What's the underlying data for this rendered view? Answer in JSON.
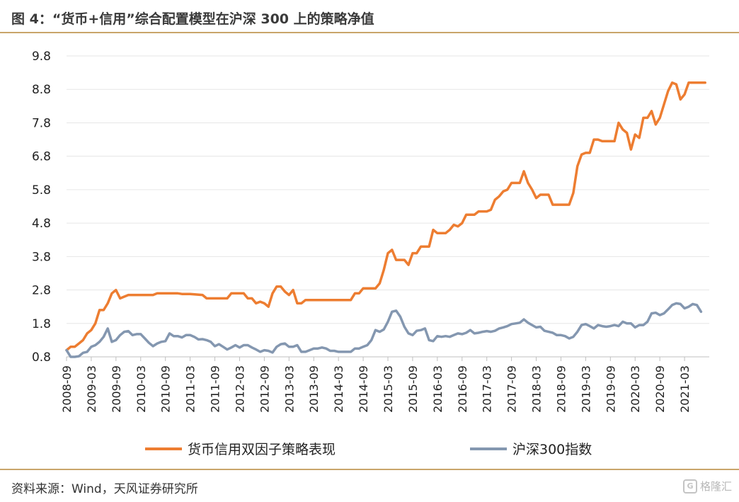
{
  "header": {
    "title": "图 4：“货币+信用”综合配置模型在沪深 300 上的策略净值"
  },
  "footer": {
    "source": "资料来源：Wind，天风证券研究所",
    "watermark": "格隆汇",
    "watermark_logo": "G"
  },
  "colors": {
    "accent_rule": "#c9a56a",
    "strategy": "#ed7d31",
    "index": "#8497b0",
    "grid": "#e6e6e6"
  },
  "chart_data": {
    "type": "line",
    "title": "",
    "xlabel": "",
    "ylabel": "",
    "ylim": [
      0.8,
      9.8
    ],
    "yticks": [
      "0.8",
      "1.8",
      "2.8",
      "3.8",
      "4.8",
      "5.8",
      "6.8",
      "7.8",
      "8.8",
      "9.8"
    ],
    "xlim": [
      "2008-09",
      "2021-09"
    ],
    "xticks": [
      "2008-09",
      "2009-03",
      "2009-09",
      "2010-03",
      "2010-09",
      "2011-03",
      "2011-09",
      "2012-03",
      "2012-09",
      "2013-03",
      "2013-09",
      "2014-03",
      "2014-09",
      "2015-03",
      "2015-09",
      "2016-03",
      "2016-09",
      "2017-03",
      "2017-09",
      "2018-03",
      "2018-09",
      "2019-03",
      "2019-09",
      "2020-03",
      "2020-09",
      "2021-03"
    ],
    "grid": "horizontal",
    "legend": "bottom",
    "series": [
      {
        "name": "货币信用双因子策略表现",
        "color": "#ed7d31",
        "points": [
          [
            "2008-09",
            1.0
          ],
          [
            "2008-10",
            1.1
          ],
          [
            "2008-11",
            1.1
          ],
          [
            "2008-12",
            1.2
          ],
          [
            "2009-01",
            1.3
          ],
          [
            "2009-02",
            1.5
          ],
          [
            "2009-03",
            1.6
          ],
          [
            "2009-04",
            1.8
          ],
          [
            "2009-05",
            2.2
          ],
          [
            "2009-06",
            2.2
          ],
          [
            "2009-07",
            2.4
          ],
          [
            "2009-08",
            2.7
          ],
          [
            "2009-09",
            2.8
          ],
          [
            "2009-10",
            2.55
          ],
          [
            "2009-11",
            2.6
          ],
          [
            "2009-12",
            2.65
          ],
          [
            "2010-03",
            2.65
          ],
          [
            "2010-06",
            2.65
          ],
          [
            "2010-07",
            2.7
          ],
          [
            "2010-09",
            2.7
          ],
          [
            "2010-12",
            2.7
          ],
          [
            "2011-01",
            2.68
          ],
          [
            "2011-03",
            2.68
          ],
          [
            "2011-06",
            2.65
          ],
          [
            "2011-07",
            2.55
          ],
          [
            "2011-09",
            2.55
          ],
          [
            "2011-12",
            2.55
          ],
          [
            "2012-01",
            2.7
          ],
          [
            "2012-03",
            2.7
          ],
          [
            "2012-04",
            2.7
          ],
          [
            "2012-05",
            2.55
          ],
          [
            "2012-06",
            2.55
          ],
          [
            "2012-07",
            2.4
          ],
          [
            "2012-08",
            2.45
          ],
          [
            "2012-09",
            2.4
          ],
          [
            "2012-10",
            2.3
          ],
          [
            "2012-11",
            2.7
          ],
          [
            "2012-12",
            2.9
          ],
          [
            "2013-01",
            2.9
          ],
          [
            "2013-02",
            2.75
          ],
          [
            "2013-03",
            2.65
          ],
          [
            "2013-04",
            2.8
          ],
          [
            "2013-05",
            2.4
          ],
          [
            "2013-06",
            2.4
          ],
          [
            "2013-07",
            2.5
          ],
          [
            "2013-09",
            2.5
          ],
          [
            "2013-12",
            2.5
          ],
          [
            "2014-03",
            2.5
          ],
          [
            "2014-06",
            2.5
          ],
          [
            "2014-07",
            2.7
          ],
          [
            "2014-08",
            2.7
          ],
          [
            "2014-09",
            2.85
          ],
          [
            "2014-12",
            2.85
          ],
          [
            "2015-01",
            3.0
          ],
          [
            "2015-02",
            3.4
          ],
          [
            "2015-03",
            3.9
          ],
          [
            "2015-04",
            4.0
          ],
          [
            "2015-05",
            3.7
          ],
          [
            "2015-06",
            3.7
          ],
          [
            "2015-07",
            3.7
          ],
          [
            "2015-08",
            3.55
          ],
          [
            "2015-09",
            3.9
          ],
          [
            "2015-10",
            3.9
          ],
          [
            "2015-11",
            4.1
          ],
          [
            "2015-12",
            4.1
          ],
          [
            "2016-01",
            4.1
          ],
          [
            "2016-02",
            4.6
          ],
          [
            "2016-03",
            4.5
          ],
          [
            "2016-04",
            4.5
          ],
          [
            "2016-05",
            4.5
          ],
          [
            "2016-06",
            4.6
          ],
          [
            "2016-07",
            4.75
          ],
          [
            "2016-08",
            4.7
          ],
          [
            "2016-09",
            4.8
          ],
          [
            "2016-10",
            5.05
          ],
          [
            "2016-11",
            5.05
          ],
          [
            "2016-12",
            5.05
          ],
          [
            "2017-01",
            5.15
          ],
          [
            "2017-02",
            5.15
          ],
          [
            "2017-03",
            5.15
          ],
          [
            "2017-04",
            5.2
          ],
          [
            "2017-05",
            5.5
          ],
          [
            "2017-06",
            5.6
          ],
          [
            "2017-07",
            5.75
          ],
          [
            "2017-08",
            5.8
          ],
          [
            "2017-09",
            6.0
          ],
          [
            "2017-10",
            6.0
          ],
          [
            "2017-11",
            6.0
          ],
          [
            "2017-12",
            6.35
          ],
          [
            "2018-01",
            6.0
          ],
          [
            "2018-02",
            5.8
          ],
          [
            "2018-03",
            5.55
          ],
          [
            "2018-04",
            5.65
          ],
          [
            "2018-05",
            5.65
          ],
          [
            "2018-06",
            5.65
          ],
          [
            "2018-07",
            5.35
          ],
          [
            "2018-08",
            5.35
          ],
          [
            "2018-09",
            5.35
          ],
          [
            "2018-10",
            5.35
          ],
          [
            "2018-11",
            5.35
          ],
          [
            "2018-12",
            5.7
          ],
          [
            "2019-01",
            6.5
          ],
          [
            "2019-02",
            6.85
          ],
          [
            "2019-03",
            6.9
          ],
          [
            "2019-04",
            6.9
          ],
          [
            "2019-05",
            7.3
          ],
          [
            "2019-06",
            7.3
          ],
          [
            "2019-07",
            7.25
          ],
          [
            "2019-08",
            7.25
          ],
          [
            "2019-09",
            7.25
          ],
          [
            "2019-10",
            7.25
          ],
          [
            "2019-11",
            7.8
          ],
          [
            "2019-12",
            7.6
          ],
          [
            "2020-01",
            7.5
          ],
          [
            "2020-02",
            7.0
          ],
          [
            "2020-03",
            7.45
          ],
          [
            "2020-04",
            7.35
          ],
          [
            "2020-05",
            7.95
          ],
          [
            "2020-06",
            7.95
          ],
          [
            "2020-07",
            8.15
          ],
          [
            "2020-08",
            7.75
          ],
          [
            "2020-09",
            7.95
          ],
          [
            "2020-10",
            8.35
          ],
          [
            "2020-11",
            8.75
          ],
          [
            "2020-12",
            9.0
          ],
          [
            "2021-01",
            8.95
          ],
          [
            "2021-02",
            8.5
          ],
          [
            "2021-03",
            8.65
          ],
          [
            "2021-04",
            9.0
          ],
          [
            "2021-05",
            9.0
          ],
          [
            "2021-06",
            9.0
          ],
          [
            "2021-07",
            9.0
          ],
          [
            "2021-08",
            9.0
          ]
        ]
      },
      {
        "name": "沪深300指数",
        "color": "#8497b0",
        "points": [
          [
            "2008-09",
            1.0
          ],
          [
            "2008-10",
            0.8
          ],
          [
            "2008-11",
            0.8
          ],
          [
            "2008-12",
            0.82
          ],
          [
            "2009-01",
            0.92
          ],
          [
            "2009-02",
            0.95
          ],
          [
            "2009-03",
            1.1
          ],
          [
            "2009-04",
            1.15
          ],
          [
            "2009-05",
            1.25
          ],
          [
            "2009-06",
            1.4
          ],
          [
            "2009-07",
            1.65
          ],
          [
            "2009-08",
            1.25
          ],
          [
            "2009-09",
            1.3
          ],
          [
            "2009-10",
            1.45
          ],
          [
            "2009-11",
            1.55
          ],
          [
            "2009-12",
            1.57
          ],
          [
            "2010-01",
            1.45
          ],
          [
            "2010-02",
            1.48
          ],
          [
            "2010-03",
            1.48
          ],
          [
            "2010-04",
            1.35
          ],
          [
            "2010-05",
            1.22
          ],
          [
            "2010-06",
            1.12
          ],
          [
            "2010-07",
            1.2
          ],
          [
            "2010-08",
            1.25
          ],
          [
            "2010-09",
            1.27
          ],
          [
            "2010-10",
            1.5
          ],
          [
            "2010-11",
            1.42
          ],
          [
            "2010-12",
            1.42
          ],
          [
            "2011-01",
            1.38
          ],
          [
            "2011-02",
            1.45
          ],
          [
            "2011-03",
            1.45
          ],
          [
            "2011-04",
            1.4
          ],
          [
            "2011-05",
            1.32
          ],
          [
            "2011-06",
            1.33
          ],
          [
            "2011-07",
            1.3
          ],
          [
            "2011-08",
            1.25
          ],
          [
            "2011-09",
            1.12
          ],
          [
            "2011-10",
            1.18
          ],
          [
            "2011-11",
            1.1
          ],
          [
            "2011-12",
            1.02
          ],
          [
            "2012-01",
            1.08
          ],
          [
            "2012-02",
            1.15
          ],
          [
            "2012-03",
            1.08
          ],
          [
            "2012-04",
            1.15
          ],
          [
            "2012-05",
            1.15
          ],
          [
            "2012-06",
            1.08
          ],
          [
            "2012-07",
            1.02
          ],
          [
            "2012-08",
            0.95
          ],
          [
            "2012-09",
            1.0
          ],
          [
            "2012-10",
            0.98
          ],
          [
            "2012-11",
            0.93
          ],
          [
            "2012-12",
            1.1
          ],
          [
            "2013-01",
            1.18
          ],
          [
            "2013-02",
            1.2
          ],
          [
            "2013-03",
            1.1
          ],
          [
            "2013-04",
            1.1
          ],
          [
            "2013-05",
            1.15
          ],
          [
            "2013-06",
            0.95
          ],
          [
            "2013-07",
            0.95
          ],
          [
            "2013-08",
            1.0
          ],
          [
            "2013-09",
            1.05
          ],
          [
            "2013-10",
            1.05
          ],
          [
            "2013-11",
            1.08
          ],
          [
            "2013-12",
            1.05
          ],
          [
            "2014-01",
            0.98
          ],
          [
            "2014-02",
            0.98
          ],
          [
            "2014-03",
            0.95
          ],
          [
            "2014-04",
            0.95
          ],
          [
            "2014-05",
            0.95
          ],
          [
            "2014-06",
            0.95
          ],
          [
            "2014-07",
            1.05
          ],
          [
            "2014-08",
            1.05
          ],
          [
            "2014-09",
            1.1
          ],
          [
            "2014-10",
            1.15
          ],
          [
            "2014-11",
            1.3
          ],
          [
            "2014-12",
            1.6
          ],
          [
            "2015-01",
            1.55
          ],
          [
            "2015-02",
            1.62
          ],
          [
            "2015-03",
            1.85
          ],
          [
            "2015-04",
            2.15
          ],
          [
            "2015-05",
            2.18
          ],
          [
            "2015-06",
            2.0
          ],
          [
            "2015-07",
            1.7
          ],
          [
            "2015-08",
            1.5
          ],
          [
            "2015-09",
            1.45
          ],
          [
            "2015-10",
            1.58
          ],
          [
            "2015-11",
            1.6
          ],
          [
            "2015-12",
            1.65
          ],
          [
            "2016-01",
            1.3
          ],
          [
            "2016-02",
            1.27
          ],
          [
            "2016-03",
            1.42
          ],
          [
            "2016-04",
            1.4
          ],
          [
            "2016-05",
            1.42
          ],
          [
            "2016-06",
            1.4
          ],
          [
            "2016-07",
            1.45
          ],
          [
            "2016-08",
            1.5
          ],
          [
            "2016-09",
            1.48
          ],
          [
            "2016-10",
            1.52
          ],
          [
            "2016-11",
            1.6
          ],
          [
            "2016-12",
            1.5
          ],
          [
            "2017-01",
            1.52
          ],
          [
            "2017-02",
            1.55
          ],
          [
            "2017-03",
            1.57
          ],
          [
            "2017-04",
            1.55
          ],
          [
            "2017-05",
            1.58
          ],
          [
            "2017-06",
            1.65
          ],
          [
            "2017-07",
            1.68
          ],
          [
            "2017-08",
            1.72
          ],
          [
            "2017-09",
            1.78
          ],
          [
            "2017-10",
            1.8
          ],
          [
            "2017-11",
            1.82
          ],
          [
            "2017-12",
            1.92
          ],
          [
            "2018-01",
            1.82
          ],
          [
            "2018-02",
            1.75
          ],
          [
            "2018-03",
            1.68
          ],
          [
            "2018-04",
            1.7
          ],
          [
            "2018-05",
            1.58
          ],
          [
            "2018-06",
            1.55
          ],
          [
            "2018-07",
            1.52
          ],
          [
            "2018-08",
            1.45
          ],
          [
            "2018-09",
            1.45
          ],
          [
            "2018-10",
            1.42
          ],
          [
            "2018-11",
            1.35
          ],
          [
            "2018-12",
            1.4
          ],
          [
            "2019-01",
            1.55
          ],
          [
            "2019-02",
            1.75
          ],
          [
            "2019-03",
            1.78
          ],
          [
            "2019-04",
            1.72
          ],
          [
            "2019-05",
            1.65
          ],
          [
            "2019-06",
            1.75
          ],
          [
            "2019-07",
            1.72
          ],
          [
            "2019-08",
            1.7
          ],
          [
            "2019-09",
            1.72
          ],
          [
            "2019-10",
            1.75
          ],
          [
            "2019-11",
            1.72
          ],
          [
            "2019-12",
            1.85
          ],
          [
            "2020-01",
            1.8
          ],
          [
            "2020-02",
            1.8
          ],
          [
            "2020-03",
            1.68
          ],
          [
            "2020-04",
            1.75
          ],
          [
            "2020-05",
            1.75
          ],
          [
            "2020-06",
            1.85
          ],
          [
            "2020-07",
            2.1
          ],
          [
            "2020-08",
            2.12
          ],
          [
            "2020-09",
            2.05
          ],
          [
            "2020-10",
            2.1
          ],
          [
            "2020-11",
            2.22
          ],
          [
            "2020-12",
            2.35
          ],
          [
            "2021-01",
            2.4
          ],
          [
            "2021-02",
            2.38
          ],
          [
            "2021-03",
            2.25
          ],
          [
            "2021-04",
            2.3
          ],
          [
            "2021-05",
            2.38
          ],
          [
            "2021-06",
            2.35
          ],
          [
            "2021-07",
            2.15
          ]
        ]
      }
    ]
  }
}
